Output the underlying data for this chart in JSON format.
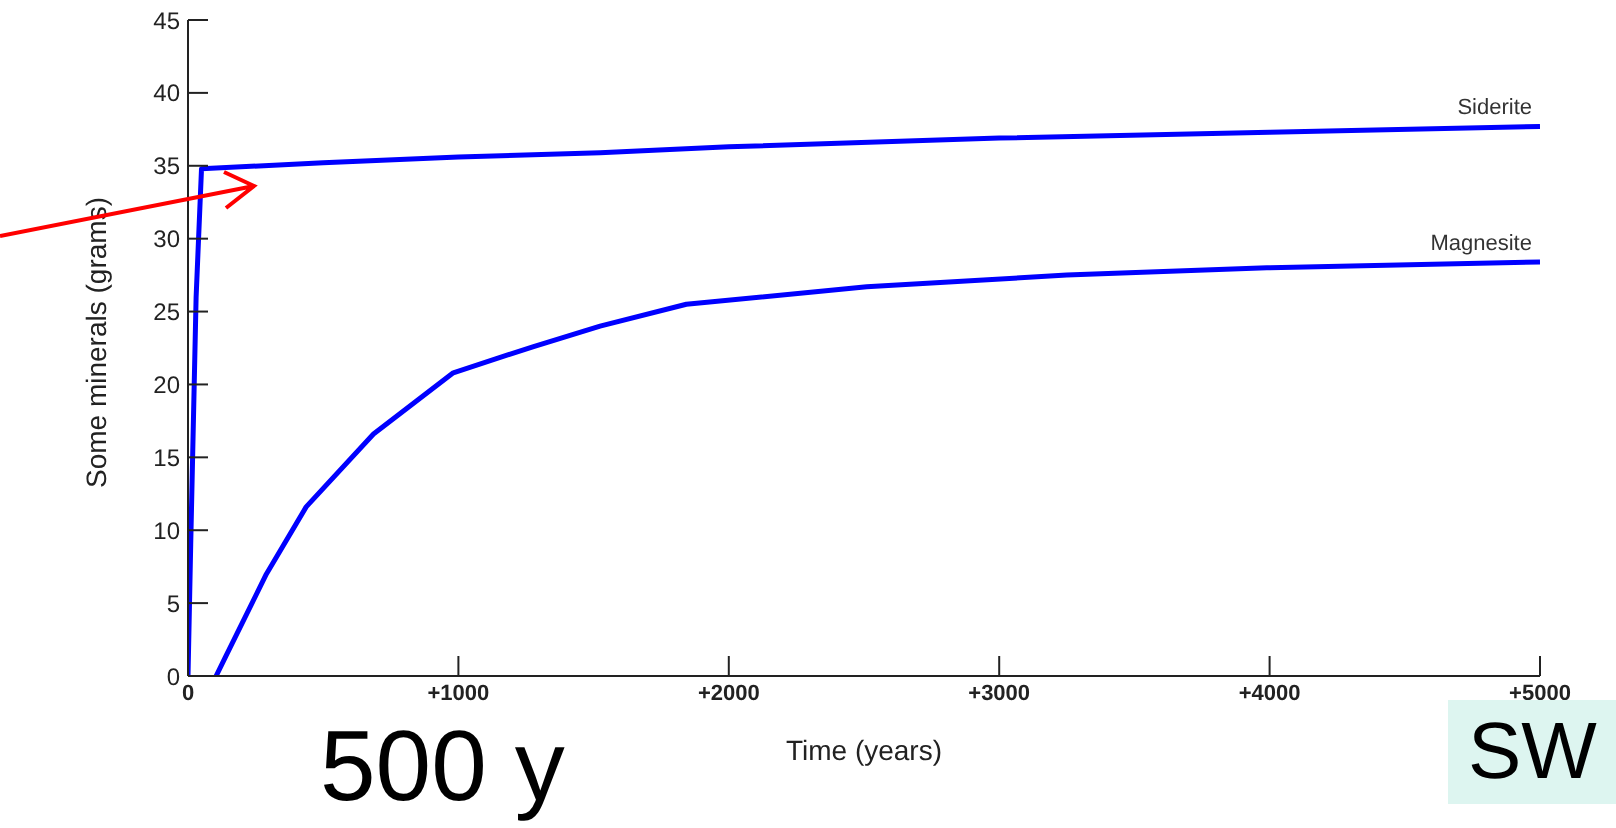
{
  "chart_data": {
    "type": "line",
    "xlabel": "Time (years)",
    "ylabel": "Some minerals (grams)",
    "xlim": [
      0,
      5000
    ],
    "xticks": [
      0,
      {
        "value": 1000,
        "label": "+1000"
      },
      {
        "value": 2000,
        "label": "+2000"
      },
      {
        "value": 3000,
        "label": "+3000"
      },
      {
        "value": 4000,
        "label": "+4000"
      },
      {
        "value": 5000,
        "label": "+5000"
      }
    ],
    "ylim": [
      0,
      45
    ],
    "yticks": [
      0,
      5,
      10,
      15,
      20,
      25,
      30,
      35,
      40,
      45
    ],
    "marker": "none",
    "line_style": "solid",
    "series": [
      {
        "name": "Siderite",
        "color": "#0000ff",
        "x": [
          0,
          10,
          20,
          30,
          50,
          500,
          1000,
          1524,
          2000,
          3000,
          4000,
          5000
        ],
        "values": [
          0,
          9,
          17.5,
          26,
          34.8,
          35.2,
          35.6,
          35.9,
          36.3,
          36.9,
          37.3,
          37.7
        ]
      },
      {
        "name": "Magnesite",
        "color": "#0000ff",
        "x": [
          104,
          141,
          290,
          437,
          686,
          981,
          1278,
          1524,
          1843,
          2510,
          3250,
          3990,
          5000
        ],
        "values": [
          0,
          1.4,
          7,
          11.6,
          16.6,
          20.8,
          22.6,
          24,
          25.5,
          26.7,
          27.5,
          28,
          28.4
        ]
      }
    ],
    "annotations": [
      "500 y",
      "SW"
    ]
  }
}
